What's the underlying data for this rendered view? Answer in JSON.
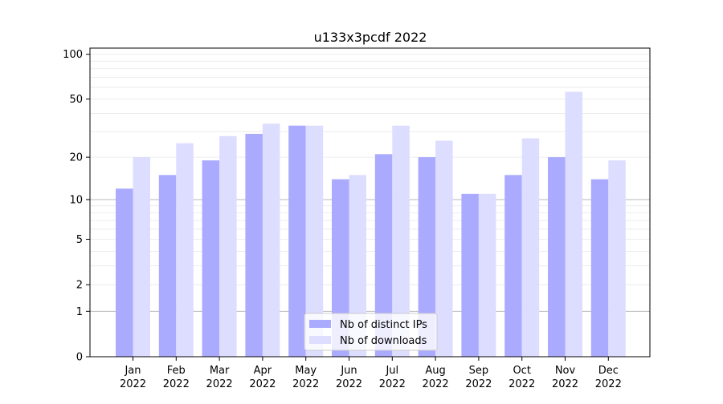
{
  "chart_data": {
    "type": "bar",
    "title": "u133x3pcdf 2022",
    "xlabel": "",
    "ylabel": "",
    "y_scale": "symlog",
    "ylim": [
      0,
      110
    ],
    "y_ticks": [
      0,
      1,
      2,
      5,
      10,
      20,
      50,
      100
    ],
    "categories": [
      {
        "month": "Jan",
        "year": "2022"
      },
      {
        "month": "Feb",
        "year": "2022"
      },
      {
        "month": "Mar",
        "year": "2022"
      },
      {
        "month": "Apr",
        "year": "2022"
      },
      {
        "month": "May",
        "year": "2022"
      },
      {
        "month": "Jun",
        "year": "2022"
      },
      {
        "month": "Jul",
        "year": "2022"
      },
      {
        "month": "Aug",
        "year": "2022"
      },
      {
        "month": "Sep",
        "year": "2022"
      },
      {
        "month": "Oct",
        "year": "2022"
      },
      {
        "month": "Nov",
        "year": "2022"
      },
      {
        "month": "Dec",
        "year": "2022"
      }
    ],
    "series": [
      {
        "name": "Nb of distinct IPs",
        "color": "#aaaaff",
        "values": [
          12,
          15,
          19,
          29,
          33,
          14,
          21,
          20,
          11,
          15,
          20,
          14
        ]
      },
      {
        "name": "Nb of downloads",
        "color": "#ddddff",
        "values": [
          20,
          25,
          28,
          34,
          33,
          15,
          33,
          26,
          11,
          27,
          56,
          19
        ]
      }
    ],
    "legend": "bottom-center",
    "grid": true
  }
}
